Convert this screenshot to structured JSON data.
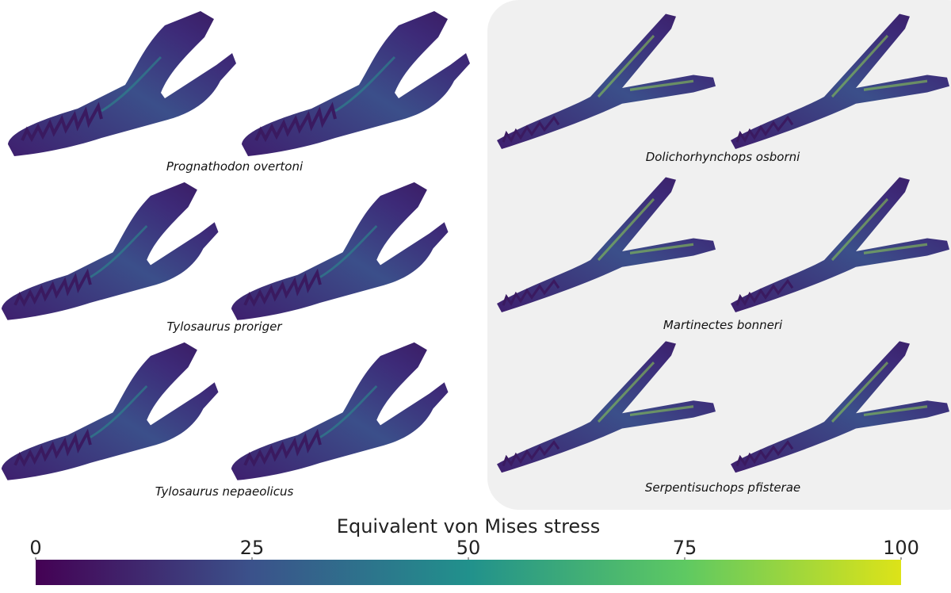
{
  "panels": [
    {
      "label": "Prognathodon overtoni"
    },
    {
      "label": "Tylosaurus proriger"
    },
    {
      "label": "Tylosaurus nepaeolicus"
    },
    {
      "label": "Dolichorhynchops osborni"
    },
    {
      "label": "Martinectes bonneri"
    },
    {
      "label": "Serpentisuchops pfisterae"
    }
  ],
  "colorbar": {
    "title": "Equivalent von Mises stress",
    "range": [
      0,
      100
    ],
    "ticks": [
      0,
      25,
      50,
      75,
      100
    ]
  }
}
